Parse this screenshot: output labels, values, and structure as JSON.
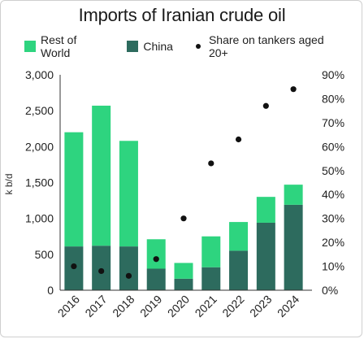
{
  "chart_data": {
    "type": "bar",
    "title": "Imports of Iranian crude oil",
    "ylabel": "k b/d",
    "categories": [
      "2016",
      "2017",
      "2018",
      "2019",
      "2020",
      "2021",
      "2022",
      "2023",
      "2024"
    ],
    "series": [
      {
        "name": "China",
        "kind": "stacked-bar",
        "color": "#2d6b5e",
        "values": [
          610,
          620,
          610,
          300,
          160,
          320,
          550,
          940,
          1190
        ]
      },
      {
        "name": "Rest of World",
        "kind": "stacked-bar",
        "color": "#2ed47f",
        "values": [
          1590,
          1950,
          1470,
          410,
          220,
          430,
          400,
          360,
          280
        ]
      },
      {
        "name": "Share on tankers aged 20+",
        "kind": "scatter",
        "axis": "right",
        "color": "#111111",
        "values": [
          0.1,
          0.08,
          0.06,
          0.13,
          0.3,
          0.53,
          0.63,
          0.77,
          0.84
        ]
      }
    ],
    "ylim": [
      0,
      3000
    ],
    "y_ticks": [
      "0",
      "500",
      "1,000",
      "1,500",
      "2,000",
      "2,500",
      "3,000"
    ],
    "y2lim": [
      0,
      0.9
    ],
    "y2_ticks": [
      "0%",
      "10%",
      "20%",
      "30%",
      "40%",
      "50%",
      "60%",
      "70%",
      "80%",
      "90%"
    ],
    "grid": false,
    "legend_position": "top"
  }
}
